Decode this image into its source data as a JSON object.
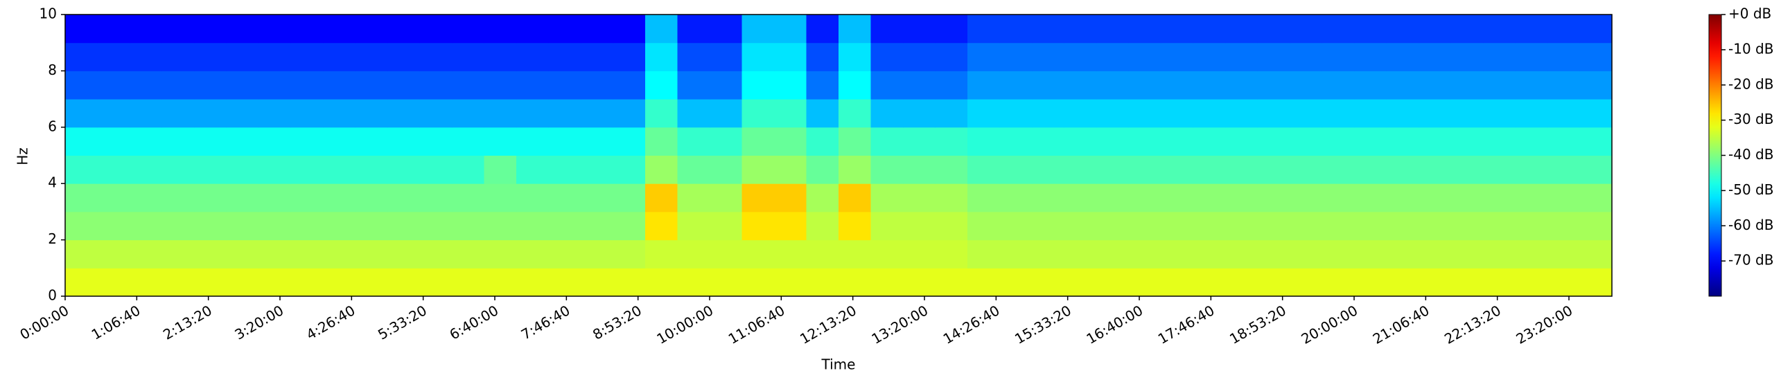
{
  "chart_data": {
    "type": "heatmap",
    "colormap": "jet",
    "xlabel": "Time",
    "ylabel": "Hz",
    "xbins": [
      0,
      1800,
      3600,
      5400,
      7200,
      9000,
      10800,
      12600,
      14400,
      16200,
      18000,
      19800,
      21600,
      23400,
      25200,
      27000,
      28800,
      30600,
      32400,
      34200,
      36000,
      37800,
      39600,
      41400,
      43200,
      45000,
      46800,
      48600,
      50400,
      52200,
      54000,
      55800,
      57600,
      59400,
      61200,
      63000,
      64800,
      66600,
      68400,
      70200,
      72000,
      73800,
      75600,
      77400,
      79200,
      81000,
      82800,
      84600,
      86400
    ],
    "ybins": [
      0,
      1,
      2,
      3,
      4,
      5,
      6,
      7,
      8,
      9,
      10
    ],
    "values": [
      [
        -32,
        -32,
        -32,
        -32,
        -32,
        -32,
        -32,
        -32,
        -32,
        -32,
        -32,
        -32,
        -32,
        -32,
        -32,
        -32,
        -32,
        -32,
        -32,
        -32,
        -32,
        -32,
        -32,
        -32,
        -32,
        -32,
        -32,
        -32,
        -32,
        -32,
        -32,
        -32,
        -32,
        -32,
        -32,
        -32,
        -32,
        -32,
        -32,
        -32,
        -32,
        -32,
        -32,
        -32,
        -32,
        -32,
        -32,
        -32
      ],
      [
        -35,
        -35,
        -35,
        -35,
        -35,
        -35,
        -35,
        -35,
        -35,
        -35,
        -35,
        -35,
        -35,
        -35,
        -35,
        -35,
        -35,
        -35,
        -34,
        -34,
        -34,
        -34,
        -34,
        -34,
        -34,
        -34,
        -34,
        -34,
        -35,
        -35,
        -35,
        -35,
        -35,
        -35,
        -35,
        -35,
        -35,
        -35,
        -35,
        -35,
        -35,
        -35,
        -35,
        -35,
        -35,
        -35,
        -35,
        -35
      ],
      [
        -39,
        -39,
        -39,
        -39,
        -39,
        -39,
        -39,
        -39,
        -39,
        -39,
        -39,
        -39,
        -39,
        -39,
        -39,
        -39,
        -39,
        -39,
        -28,
        -35,
        -35,
        -28,
        -28,
        -35,
        -28,
        -35,
        -35,
        -35,
        -37,
        -37,
        -37,
        -37,
        -37,
        -37,
        -37,
        -37,
        -37,
        -37,
        -37,
        -37,
        -37,
        -37,
        -37,
        -37,
        -37,
        -37,
        -37,
        -37
      ],
      [
        -41,
        -41,
        -41,
        -41,
        -41,
        -41,
        -41,
        -41,
        -41,
        -41,
        -41,
        -41,
        -41,
        -41,
        -41,
        -41,
        -41,
        -41,
        -26,
        -37,
        -37,
        -26,
        -26,
        -37,
        -26,
        -37,
        -37,
        -37,
        -39,
        -39,
        -39,
        -39,
        -39,
        -39,
        -39,
        -39,
        -39,
        -39,
        -39,
        -39,
        -39,
        -39,
        -39,
        -39,
        -39,
        -39,
        -39,
        -39
      ],
      [
        -46,
        -46,
        -46,
        -46,
        -46,
        -46,
        -46,
        -46,
        -46,
        -46,
        -46,
        -46,
        -46,
        -42,
        -46,
        -46,
        -46,
        -46,
        -38,
        -42,
        -42,
        -38,
        -38,
        -42,
        -38,
        -42,
        -42,
        -42,
        -44,
        -44,
        -44,
        -44,
        -44,
        -44,
        -44,
        -44,
        -44,
        -44,
        -44,
        -44,
        -44,
        -44,
        -44,
        -44,
        -44,
        -44,
        -44,
        -44
      ],
      [
        -49,
        -49,
        -49,
        -49,
        -49,
        -49,
        -49,
        -49,
        -49,
        -49,
        -49,
        -49,
        -49,
        -49,
        -49,
        -49,
        -49,
        -49,
        -42,
        -46,
        -46,
        -42,
        -42,
        -46,
        -42,
        -46,
        -46,
        -46,
        -47,
        -47,
        -47,
        -47,
        -47,
        -47,
        -47,
        -47,
        -47,
        -47,
        -47,
        -47,
        -47,
        -47,
        -47,
        -47,
        -47,
        -47,
        -47,
        -47
      ],
      [
        -57,
        -57,
        -57,
        -57,
        -57,
        -57,
        -57,
        -57,
        -57,
        -57,
        -57,
        -57,
        -57,
        -57,
        -57,
        -57,
        -57,
        -57,
        -46,
        -55,
        -55,
        -46,
        -46,
        -55,
        -46,
        -55,
        -55,
        -55,
        -53,
        -53,
        -53,
        -53,
        -53,
        -53,
        -53,
        -53,
        -53,
        -53,
        -53,
        -53,
        -53,
        -53,
        -53,
        -53,
        -53,
        -53,
        -53,
        -53
      ],
      [
        -63,
        -63,
        -63,
        -63,
        -63,
        -63,
        -63,
        -63,
        -63,
        -63,
        -63,
        -63,
        -63,
        -63,
        -63,
        -63,
        -63,
        -63,
        -50,
        -61,
        -61,
        -50,
        -50,
        -61,
        -50,
        -61,
        -61,
        -61,
        -58,
        -58,
        -58,
        -58,
        -58,
        -58,
        -58,
        -58,
        -58,
        -58,
        -58,
        -58,
        -58,
        -58,
        -58,
        -58,
        -58,
        -58,
        -58,
        -58
      ],
      [
        -66,
        -66,
        -66,
        -66,
        -66,
        -66,
        -66,
        -66,
        -66,
        -66,
        -66,
        -66,
        -66,
        -66,
        -66,
        -66,
        -66,
        -66,
        -52,
        -64,
        -64,
        -52,
        -52,
        -64,
        -52,
        -64,
        -64,
        -64,
        -61,
        -61,
        -61,
        -61,
        -61,
        -61,
        -61,
        -61,
        -61,
        -61,
        -61,
        -61,
        -61,
        -61,
        -61,
        -61,
        -61,
        -61,
        -61,
        -61
      ],
      [
        -70,
        -70,
        -70,
        -70,
        -70,
        -70,
        -70,
        -70,
        -70,
        -70,
        -70,
        -70,
        -70,
        -70,
        -70,
        -70,
        -70,
        -70,
        -55,
        -68,
        -68,
        -55,
        -55,
        -68,
        -55,
        -68,
        -68,
        -68,
        -65,
        -65,
        -65,
        -65,
        -65,
        -65,
        -65,
        -65,
        -65,
        -65,
        -65,
        -65,
        -65,
        -65,
        -65,
        -65,
        -65,
        -65,
        -65,
        -65
      ]
    ],
    "xlim": [
      0,
      86400
    ],
    "ylim": [
      0,
      10
    ],
    "xticks": [
      {
        "value": 0,
        "label": "0:00:00"
      },
      {
        "value": 4000,
        "label": "1:06:40"
      },
      {
        "value": 8000,
        "label": "2:13:20"
      },
      {
        "value": 12000,
        "label": "3:20:00"
      },
      {
        "value": 16000,
        "label": "4:26:40"
      },
      {
        "value": 20000,
        "label": "5:33:20"
      },
      {
        "value": 24000,
        "label": "6:40:00"
      },
      {
        "value": 28000,
        "label": "7:46:40"
      },
      {
        "value": 32000,
        "label": "8:53:20"
      },
      {
        "value": 36000,
        "label": "10:00:00"
      },
      {
        "value": 40000,
        "label": "11:06:40"
      },
      {
        "value": 44000,
        "label": "12:13:20"
      },
      {
        "value": 48000,
        "label": "13:20:00"
      },
      {
        "value": 52000,
        "label": "14:26:40"
      },
      {
        "value": 56000,
        "label": "15:33:20"
      },
      {
        "value": 60000,
        "label": "16:40:00"
      },
      {
        "value": 64000,
        "label": "17:46:40"
      },
      {
        "value": 68000,
        "label": "18:53:20"
      },
      {
        "value": 72000,
        "label": "20:00:00"
      },
      {
        "value": 76000,
        "label": "21:06:40"
      },
      {
        "value": 80000,
        "label": "22:13:20"
      },
      {
        "value": 84000,
        "label": "23:20:00"
      }
    ],
    "yticks": [
      0,
      2,
      4,
      6,
      8,
      10
    ],
    "clim": [
      -80,
      0
    ],
    "cticks": [
      {
        "value": 0,
        "label": "+0 dB"
      },
      {
        "value": -10,
        "label": "-10 dB"
      },
      {
        "value": -20,
        "label": "-20 dB"
      },
      {
        "value": -30,
        "label": "-30 dB"
      },
      {
        "value": -40,
        "label": "-40 dB"
      },
      {
        "value": -50,
        "label": "-50 dB"
      },
      {
        "value": -60,
        "label": "-60 dB"
      },
      {
        "value": -70,
        "label": "-70 dB"
      }
    ]
  }
}
